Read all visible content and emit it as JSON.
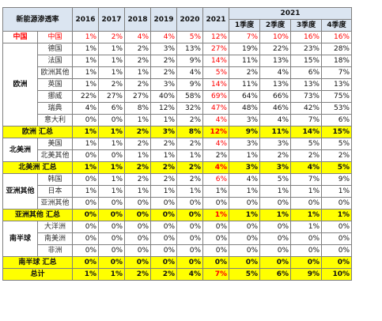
{
  "table": {
    "title": "新能源渗透率",
    "years": [
      "2016",
      "2017",
      "2018",
      "2019",
      "2020",
      "2021"
    ],
    "group_2021": "2021",
    "quarters": [
      "1季度",
      "2季度",
      "3季度",
      "4季度"
    ],
    "rows": [
      {
        "type": "china",
        "region": "中国",
        "country": "中国",
        "values": [
          "1%",
          "2%",
          "4%",
          "4%",
          "5%",
          "12%",
          "7%",
          "10%",
          "16%",
          "16%"
        ]
      },
      {
        "type": "data",
        "region": "欧洲",
        "country": "德国",
        "values": [
          "1%",
          "1%",
          "2%",
          "3%",
          "13%",
          "27%",
          "19%",
          "22%",
          "23%",
          "28%"
        ]
      },
      {
        "type": "data",
        "country": "法国",
        "values": [
          "1%",
          "1%",
          "2%",
          "2%",
          "9%",
          "14%",
          "11%",
          "13%",
          "15%",
          "18%"
        ]
      },
      {
        "type": "data",
        "country": "欧洲其他",
        "values": [
          "1%",
          "1%",
          "1%",
          "2%",
          "4%",
          "5%",
          "2%",
          "4%",
          "6%",
          "7%"
        ]
      },
      {
        "type": "data",
        "country": "英国",
        "values": [
          "1%",
          "2%",
          "2%",
          "3%",
          "9%",
          "14%",
          "11%",
          "13%",
          "13%",
          "13%"
        ]
      },
      {
        "type": "data",
        "country": "挪威",
        "values": [
          "22%",
          "27%",
          "27%",
          "40%",
          "58%",
          "69%",
          "64%",
          "66%",
          "73%",
          "75%"
        ]
      },
      {
        "type": "data",
        "country": "瑞典",
        "values": [
          "4%",
          "6%",
          "8%",
          "12%",
          "32%",
          "47%",
          "48%",
          "46%",
          "42%",
          "53%"
        ]
      },
      {
        "type": "data",
        "country": "意大利",
        "values": [
          "0%",
          "0%",
          "1%",
          "1%",
          "2%",
          "4%",
          "3%",
          "4%",
          "7%",
          "6%"
        ]
      },
      {
        "type": "sum",
        "label": "欧洲 汇总",
        "values": [
          "1%",
          "1%",
          "2%",
          "3%",
          "8%",
          "12%",
          "9%",
          "11%",
          "14%",
          "15%"
        ]
      },
      {
        "type": "data",
        "region": "北美洲",
        "country": "美国",
        "values": [
          "1%",
          "1%",
          "2%",
          "2%",
          "2%",
          "4%",
          "3%",
          "3%",
          "5%",
          "5%"
        ]
      },
      {
        "type": "data",
        "country": "北美其他",
        "values": [
          "0%",
          "0%",
          "1%",
          "1%",
          "1%",
          "2%",
          "1%",
          "2%",
          "2%",
          "2%"
        ]
      },
      {
        "type": "sum",
        "label": "北美洲 汇总",
        "values": [
          "1%",
          "1%",
          "2%",
          "2%",
          "2%",
          "4%",
          "3%",
          "3%",
          "4%",
          "5%"
        ]
      },
      {
        "type": "data",
        "region": "亚洲其他",
        "country": "韩国",
        "values": [
          "0%",
          "1%",
          "2%",
          "2%",
          "2%",
          "6%",
          "4%",
          "5%",
          "7%",
          "9%"
        ]
      },
      {
        "type": "data",
        "country": "日本",
        "values": [
          "1%",
          "1%",
          "1%",
          "1%",
          "1%",
          "1%",
          "1%",
          "1%",
          "1%",
          "1%"
        ]
      },
      {
        "type": "data",
        "country": "亚洲其他",
        "values": [
          "0%",
          "0%",
          "0%",
          "0%",
          "0%",
          "0%",
          "0%",
          "0%",
          "0%",
          "0%"
        ]
      },
      {
        "type": "sum",
        "label": "亚洲其他 汇总",
        "values": [
          "0%",
          "0%",
          "0%",
          "0%",
          "0%",
          "1%",
          "1%",
          "1%",
          "1%",
          "1%"
        ]
      },
      {
        "type": "data",
        "region": "南半球",
        "country": "大洋洲",
        "values": [
          "0%",
          "0%",
          "0%",
          "0%",
          "0%",
          "0%",
          "0%",
          "0%",
          "1%",
          "0%"
        ]
      },
      {
        "type": "data",
        "country": "南美洲",
        "values": [
          "0%",
          "0%",
          "0%",
          "0%",
          "0%",
          "0%",
          "0%",
          "0%",
          "0%",
          "0%"
        ]
      },
      {
        "type": "data",
        "country": "非洲",
        "values": [
          "0%",
          "0%",
          "0%",
          "0%",
          "0%",
          "0%",
          "0%",
          "0%",
          "0%",
          "0%"
        ]
      },
      {
        "type": "sum",
        "label": "南半球 汇总",
        "values": [
          "0%",
          "0%",
          "0%",
          "0%",
          "0%",
          "0%",
          "0%",
          "0%",
          "0%",
          "0%"
        ]
      },
      {
        "type": "sum",
        "label": "总计",
        "values": [
          "1%",
          "1%",
          "2%",
          "2%",
          "4%",
          "7%",
          "5%",
          "6%",
          "9%",
          "10%"
        ]
      }
    ]
  },
  "colors": {
    "header_bg": "#dbe5f1",
    "summary_bg": "#ffff00",
    "highlight_red": "#ff0000"
  }
}
